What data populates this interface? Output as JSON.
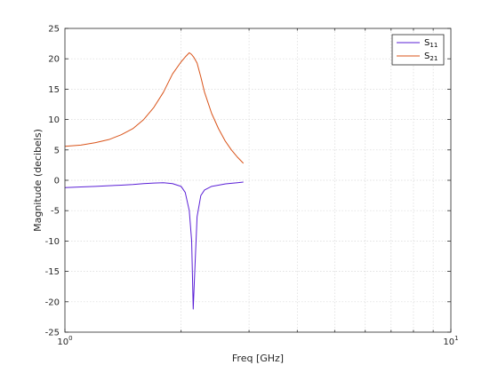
{
  "chart_data": {
    "type": "line",
    "title": "",
    "xlabel": "Freq [GHz]",
    "ylabel": "Magnitude (decibels)",
    "x_scale": "log",
    "xlim": [
      1,
      10
    ],
    "ylim": [
      -25,
      25
    ],
    "x_ticks": [
      {
        "value": 1,
        "base": "10",
        "exp": "0"
      },
      {
        "value": 10,
        "base": "10",
        "exp": "1"
      }
    ],
    "y_ticks": [
      -25,
      -20,
      -15,
      -10,
      -5,
      0,
      5,
      10,
      15,
      20,
      25
    ],
    "grid": true,
    "legend": "top-right",
    "colors": {
      "s11": "#5a1fd6",
      "s21": "#d95319",
      "grid": "#d8d8d8",
      "axis": "#262626"
    },
    "series": [
      {
        "name": "S",
        "sub": "11",
        "color": "#5a1fd6",
        "x": [
          1.0,
          1.1,
          1.2,
          1.3,
          1.4,
          1.5,
          1.6,
          1.7,
          1.8,
          1.9,
          2.0,
          2.05,
          2.1,
          2.13,
          2.15,
          2.17,
          2.2,
          2.25,
          2.3,
          2.4,
          2.5,
          2.6,
          2.7,
          2.8,
          2.9
        ],
        "values": [
          -1.2,
          -1.1,
          -1.0,
          -0.9,
          -0.8,
          -0.7,
          -0.55,
          -0.45,
          -0.4,
          -0.55,
          -1.0,
          -2.0,
          -5.0,
          -10.0,
          -21.2,
          -15.0,
          -6.0,
          -2.5,
          -1.6,
          -1.0,
          -0.8,
          -0.6,
          -0.5,
          -0.4,
          -0.3
        ]
      },
      {
        "name": "S",
        "sub": "21",
        "color": "#d95319",
        "x": [
          1.0,
          1.1,
          1.2,
          1.3,
          1.4,
          1.5,
          1.6,
          1.7,
          1.8,
          1.9,
          2.0,
          2.05,
          2.1,
          2.13,
          2.16,
          2.2,
          2.25,
          2.3,
          2.4,
          2.5,
          2.6,
          2.7,
          2.8,
          2.9
        ],
        "values": [
          5.6,
          5.8,
          6.2,
          6.7,
          7.5,
          8.5,
          10.0,
          12.0,
          14.5,
          17.5,
          19.5,
          20.3,
          21.0,
          20.7,
          20.2,
          19.3,
          17.0,
          14.5,
          11.0,
          8.5,
          6.5,
          5.0,
          3.8,
          2.8
        ]
      }
    ]
  }
}
